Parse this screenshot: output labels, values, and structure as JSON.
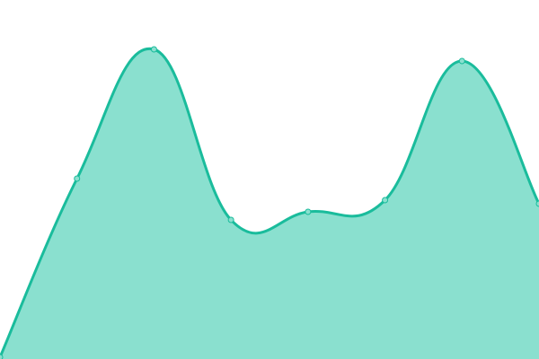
{
  "chart_data": {
    "type": "area",
    "x": [
      0,
      1,
      2,
      3,
      4,
      5,
      6,
      7
    ],
    "series": [
      {
        "values": [
          2,
          201,
          345,
          155,
          164,
          177,
          332,
          173
        ]
      }
    ],
    "ylim": [
      0,
      400
    ],
    "xlim": [
      0,
      7
    ],
    "grid": false,
    "axes_visible": false,
    "curve": "smooth",
    "colors": {
      "line": "#1abc9c",
      "fill": "#8ae0cf",
      "point_fill": "#8ae0cf"
    }
  }
}
